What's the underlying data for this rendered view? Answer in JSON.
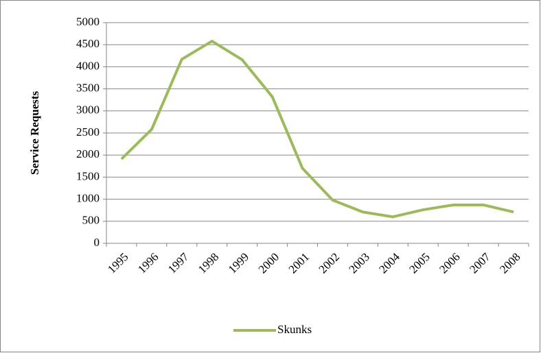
{
  "chart_data": {
    "type": "line",
    "y_label": "Service Requests",
    "categories": [
      "1995",
      "1996",
      "1997",
      "1998",
      "1999",
      "2000",
      "2001",
      "2002",
      "2003",
      "2004",
      "2005",
      "2006",
      "2007",
      "2008"
    ],
    "series": [
      {
        "name": "Skunks",
        "color": "#9bbb59",
        "values": [
          1910,
          2580,
          4170,
          4580,
          4160,
          3320,
          1700,
          980,
          710,
          600,
          760,
          870,
          870,
          710
        ]
      }
    ],
    "ylim": [
      0,
      5000
    ],
    "yticks": [
      0,
      500,
      1000,
      1500,
      2000,
      2500,
      3000,
      3500,
      4000,
      4500,
      5000
    ],
    "grid": true,
    "legend": "bottom"
  }
}
